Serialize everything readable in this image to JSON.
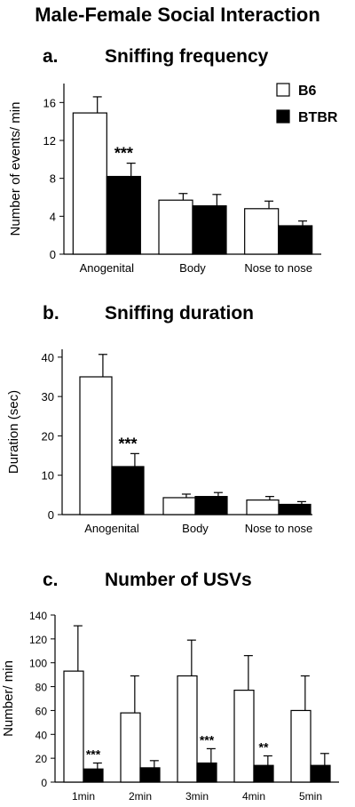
{
  "figure": {
    "title": "Male-Female Social Interaction"
  },
  "legend": [
    {
      "name": "B6",
      "color": "#ffffff"
    },
    {
      "name": "BTBR",
      "color": "#000000"
    }
  ],
  "chart_data": [
    {
      "panel": "a.",
      "type": "bar",
      "title": "Sniffing frequency",
      "ylabel": "Number of events/ min",
      "xlabel": "",
      "ylim": [
        0,
        18
      ],
      "yticks": [
        0,
        4,
        8,
        12,
        16
      ],
      "categories": [
        "Anogenital",
        "Body",
        "Nose to nose"
      ],
      "series": [
        {
          "name": "B6",
          "values": [
            14.9,
            5.7,
            4.8
          ],
          "errors": [
            1.7,
            0.7,
            0.8
          ]
        },
        {
          "name": "BTBR",
          "values": [
            8.2,
            5.1,
            3.0
          ],
          "errors": [
            1.4,
            1.2,
            0.5
          ]
        }
      ],
      "annotations": [
        {
          "category": "Anogenital",
          "series": "BTBR",
          "text": "***"
        }
      ],
      "legend_position": "top-right"
    },
    {
      "panel": "b.",
      "type": "bar",
      "title": "Sniffing duration",
      "ylabel": "Duration (sec)",
      "xlabel": "",
      "ylim": [
        0,
        42
      ],
      "yticks": [
        0,
        10,
        20,
        30,
        40
      ],
      "categories": [
        "Anogenital",
        "Body",
        "Nose to nose"
      ],
      "series": [
        {
          "name": "B6",
          "values": [
            35.0,
            4.3,
            3.7
          ],
          "errors": [
            5.7,
            0.9,
            0.9
          ]
        },
        {
          "name": "BTBR",
          "values": [
            12.2,
            4.6,
            2.6
          ],
          "errors": [
            3.3,
            1.0,
            0.7
          ]
        }
      ],
      "annotations": [
        {
          "category": "Anogenital",
          "series": "BTBR",
          "text": "***"
        }
      ]
    },
    {
      "panel": "c.",
      "type": "bar",
      "title": "Number of USVs",
      "ylabel": "Number/ min",
      "xlabel": "",
      "ylim": [
        0,
        140
      ],
      "yticks": [
        0,
        20,
        40,
        60,
        80,
        100,
        120,
        140
      ],
      "categories": [
        "1min",
        "2min",
        "3min",
        "4min",
        "5min"
      ],
      "series": [
        {
          "name": "B6",
          "values": [
            93,
            58,
            89,
            77,
            60
          ],
          "errors": [
            38,
            31,
            30,
            29,
            29
          ]
        },
        {
          "name": "BTBR",
          "values": [
            11,
            12,
            16,
            14,
            14
          ],
          "errors": [
            5,
            6,
            12,
            8,
            10
          ]
        }
      ],
      "annotations": [
        {
          "category": "1min",
          "series": "BTBR",
          "text": "***"
        },
        {
          "category": "3min",
          "series": "BTBR",
          "text": "***"
        },
        {
          "category": "4min",
          "series": "BTBR",
          "text": "**"
        }
      ]
    }
  ]
}
